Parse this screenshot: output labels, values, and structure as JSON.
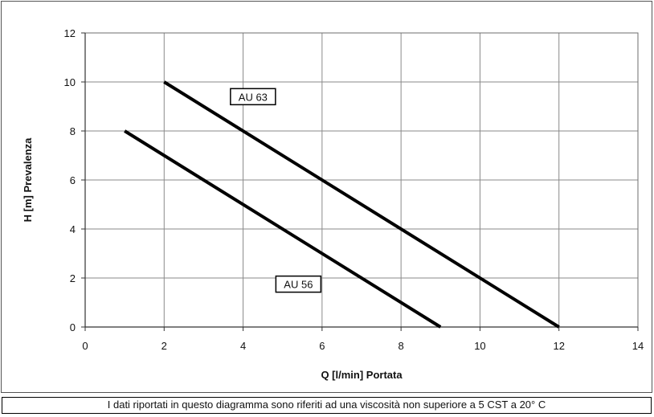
{
  "chart_data": {
    "type": "line",
    "title": "",
    "xlabel": "Q [l/min] Portata",
    "ylabel": "H [m] Prevalenza",
    "xlim": [
      0,
      14
    ],
    "ylim": [
      0,
      12
    ],
    "xticks": [
      0,
      2,
      4,
      6,
      8,
      10,
      12,
      14
    ],
    "yticks": [
      0,
      2,
      4,
      6,
      8,
      10,
      12
    ],
    "grid": true,
    "series": [
      {
        "name": "AU 63",
        "x": [
          2,
          12
        ],
        "y": [
          10,
          0
        ]
      },
      {
        "name": "AU 56",
        "x": [
          1,
          9
        ],
        "y": [
          8,
          0
        ]
      }
    ],
    "annotations": [
      {
        "text": "AU 63",
        "x": 4.25,
        "y": 9.4
      },
      {
        "text": "AU 56",
        "x": 5.4,
        "y": 1.75
      }
    ]
  },
  "footnote": "I dati riportati in questo diagramma sono riferiti ad una viscosità non superiore a 5 CST a 20° C"
}
